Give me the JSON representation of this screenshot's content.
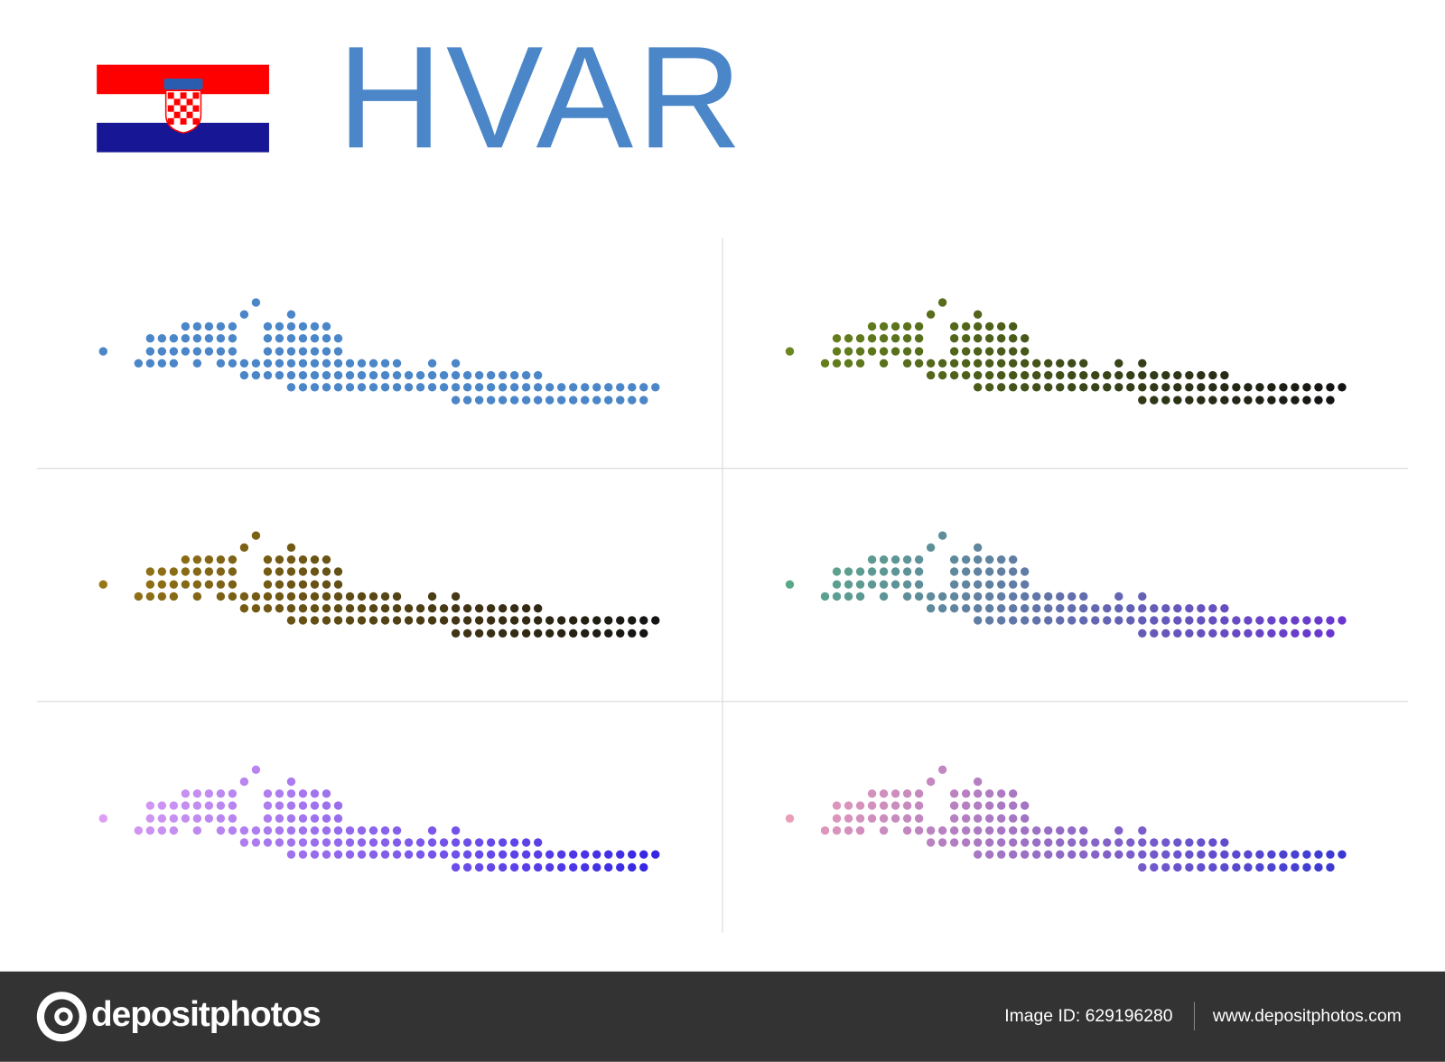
{
  "header": {
    "title": "HVAR"
  },
  "maps": [
    {
      "colors": [
        "#4a86c8",
        "#4a86c8"
      ]
    },
    {
      "colors": [
        "#6e8c1e",
        "#141414"
      ]
    },
    {
      "colors": [
        "#a07c16",
        "#141414"
      ]
    },
    {
      "colors": [
        "#5aae86",
        "#6a36d0"
      ]
    },
    {
      "colors": [
        "#e4a4f4",
        "#3626e4"
      ]
    },
    {
      "colors": [
        "#f2a2b8",
        "#3a38d4"
      ]
    }
  ],
  "footer": {
    "brand": "depositphotos",
    "image_id": "Image ID: 629196280",
    "url": "www.depositphotos.com"
  }
}
